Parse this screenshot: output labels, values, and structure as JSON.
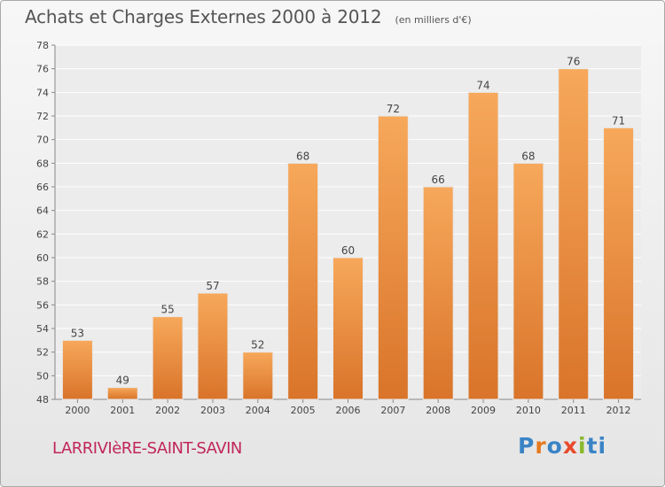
{
  "chart_data": {
    "type": "bar",
    "title": "Achats et Charges Externes 2000 à 2012",
    "subtitle": "(en milliers d'€)",
    "categories": [
      "2000",
      "2001",
      "2002",
      "2003",
      "2004",
      "2005",
      "2006",
      "2007",
      "2008",
      "2009",
      "2010",
      "2011",
      "2012"
    ],
    "values": [
      53,
      49,
      55,
      57,
      52,
      68,
      60,
      72,
      66,
      74,
      68,
      76,
      71
    ],
    "ylim": [
      48,
      78
    ],
    "yticks": [
      48,
      50,
      52,
      54,
      56,
      58,
      60,
      62,
      64,
      66,
      68,
      70,
      72,
      74,
      76,
      78
    ],
    "grid": true,
    "bar_color_top": "#f7a85a",
    "bar_color_bottom": "#d9742a"
  },
  "footer": {
    "commune": "LARRIVIèRE-SAINT-SAVIN",
    "logo": [
      "P",
      "r",
      "o",
      "x",
      "i",
      "ti"
    ]
  }
}
